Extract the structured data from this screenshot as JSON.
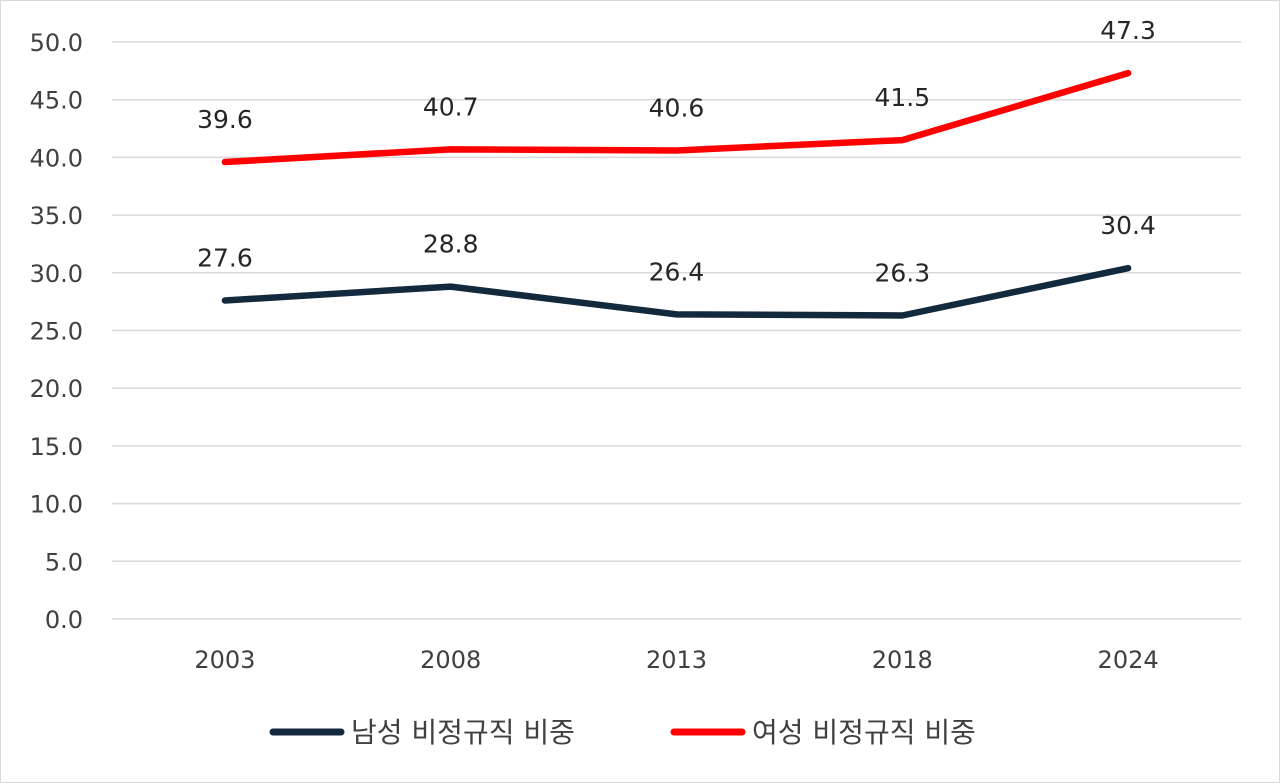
{
  "chart_data": {
    "type": "line",
    "title": "",
    "xlabel": "",
    "ylabel": "",
    "categories": [
      "2003",
      "2008",
      "2013",
      "2018",
      "2024"
    ],
    "ylim": [
      0,
      50
    ],
    "yticks": [
      "0.0",
      "5.0",
      "10.0",
      "15.0",
      "20.0",
      "25.0",
      "30.0",
      "35.0",
      "40.0",
      "45.0",
      "50.0"
    ],
    "grid": true,
    "legend_position": "bottom",
    "series": [
      {
        "name": "남성 비정규직 비중",
        "color": "#13293d",
        "values": [
          27.6,
          28.8,
          26.4,
          26.3,
          30.4
        ],
        "labels": [
          "27.6",
          "28.8",
          "26.4",
          "26.3",
          "30.4"
        ]
      },
      {
        "name": "여성 비정규직 비중",
        "color": "#ff0000",
        "values": [
          39.6,
          40.7,
          40.6,
          41.5,
          47.3
        ],
        "labels": [
          "39.6",
          "40.7",
          "40.6",
          "41.5",
          "47.3"
        ]
      }
    ]
  }
}
